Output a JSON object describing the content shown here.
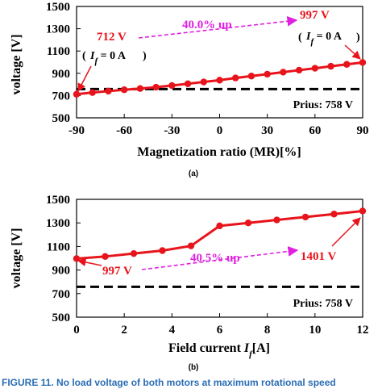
{
  "caption": "FIGURE 11. No load voltage of both motors at maximum rotational speed",
  "chart_data": [
    {
      "type": "line",
      "panel_label": "(a)",
      "xlabel": "Magnetization ratio (MR)[%]",
      "ylabel": "voltage [V]",
      "xlim": [
        -90,
        90
      ],
      "ylim": [
        500,
        1500
      ],
      "xticks": [
        -90,
        -60,
        -30,
        0,
        30,
        60,
        90
      ],
      "yticks": [
        500,
        700,
        900,
        1100,
        1300,
        1500
      ],
      "grid": false,
      "series": [
        {
          "color": "#e8141c",
          "x": [
            -90,
            -80,
            -70,
            -60,
            -50,
            -40,
            -30,
            -20,
            -10,
            0,
            10,
            20,
            30,
            40,
            50,
            60,
            70,
            80,
            90
          ],
          "y": [
            712,
            727,
            740,
            752,
            763,
            775,
            790,
            806,
            822,
            838,
            858,
            875,
            892,
            910,
            928,
            945,
            963,
            980,
            997
          ]
        }
      ],
      "reference_line": {
        "value": 758,
        "label": "Prius: 758 V",
        "color": "#000000"
      },
      "annotations": {
        "start_value": "712 V",
        "start_condition": "I_f = 0 A",
        "end_value": "997 V",
        "end_condition": "I_f = 0 A",
        "increase": "40.0% up"
      }
    },
    {
      "type": "line",
      "panel_label": "(b)",
      "xlabel": "Field current I_f[A]",
      "ylabel": "voltage [V]",
      "xlim": [
        0,
        12
      ],
      "ylim": [
        500,
        1500
      ],
      "xticks": [
        0,
        2,
        4,
        6,
        8,
        10,
        12
      ],
      "yticks": [
        500,
        700,
        900,
        1100,
        1300,
        1500
      ],
      "grid": false,
      "series": [
        {
          "color": "#e8141c",
          "x": [
            0,
            1.2,
            2.4,
            3.6,
            4.8,
            6.0,
            7.2,
            8.4,
            9.6,
            10.8,
            12
          ],
          "y": [
            997,
            1015,
            1040,
            1065,
            1105,
            1275,
            1300,
            1325,
            1350,
            1375,
            1401
          ]
        }
      ],
      "reference_line": {
        "value": 758,
        "label": "Prius: 758 V",
        "color": "#000000"
      },
      "annotations": {
        "start_value": "997 V",
        "end_value": "1401 V",
        "increase": "40.5% up"
      }
    }
  ]
}
